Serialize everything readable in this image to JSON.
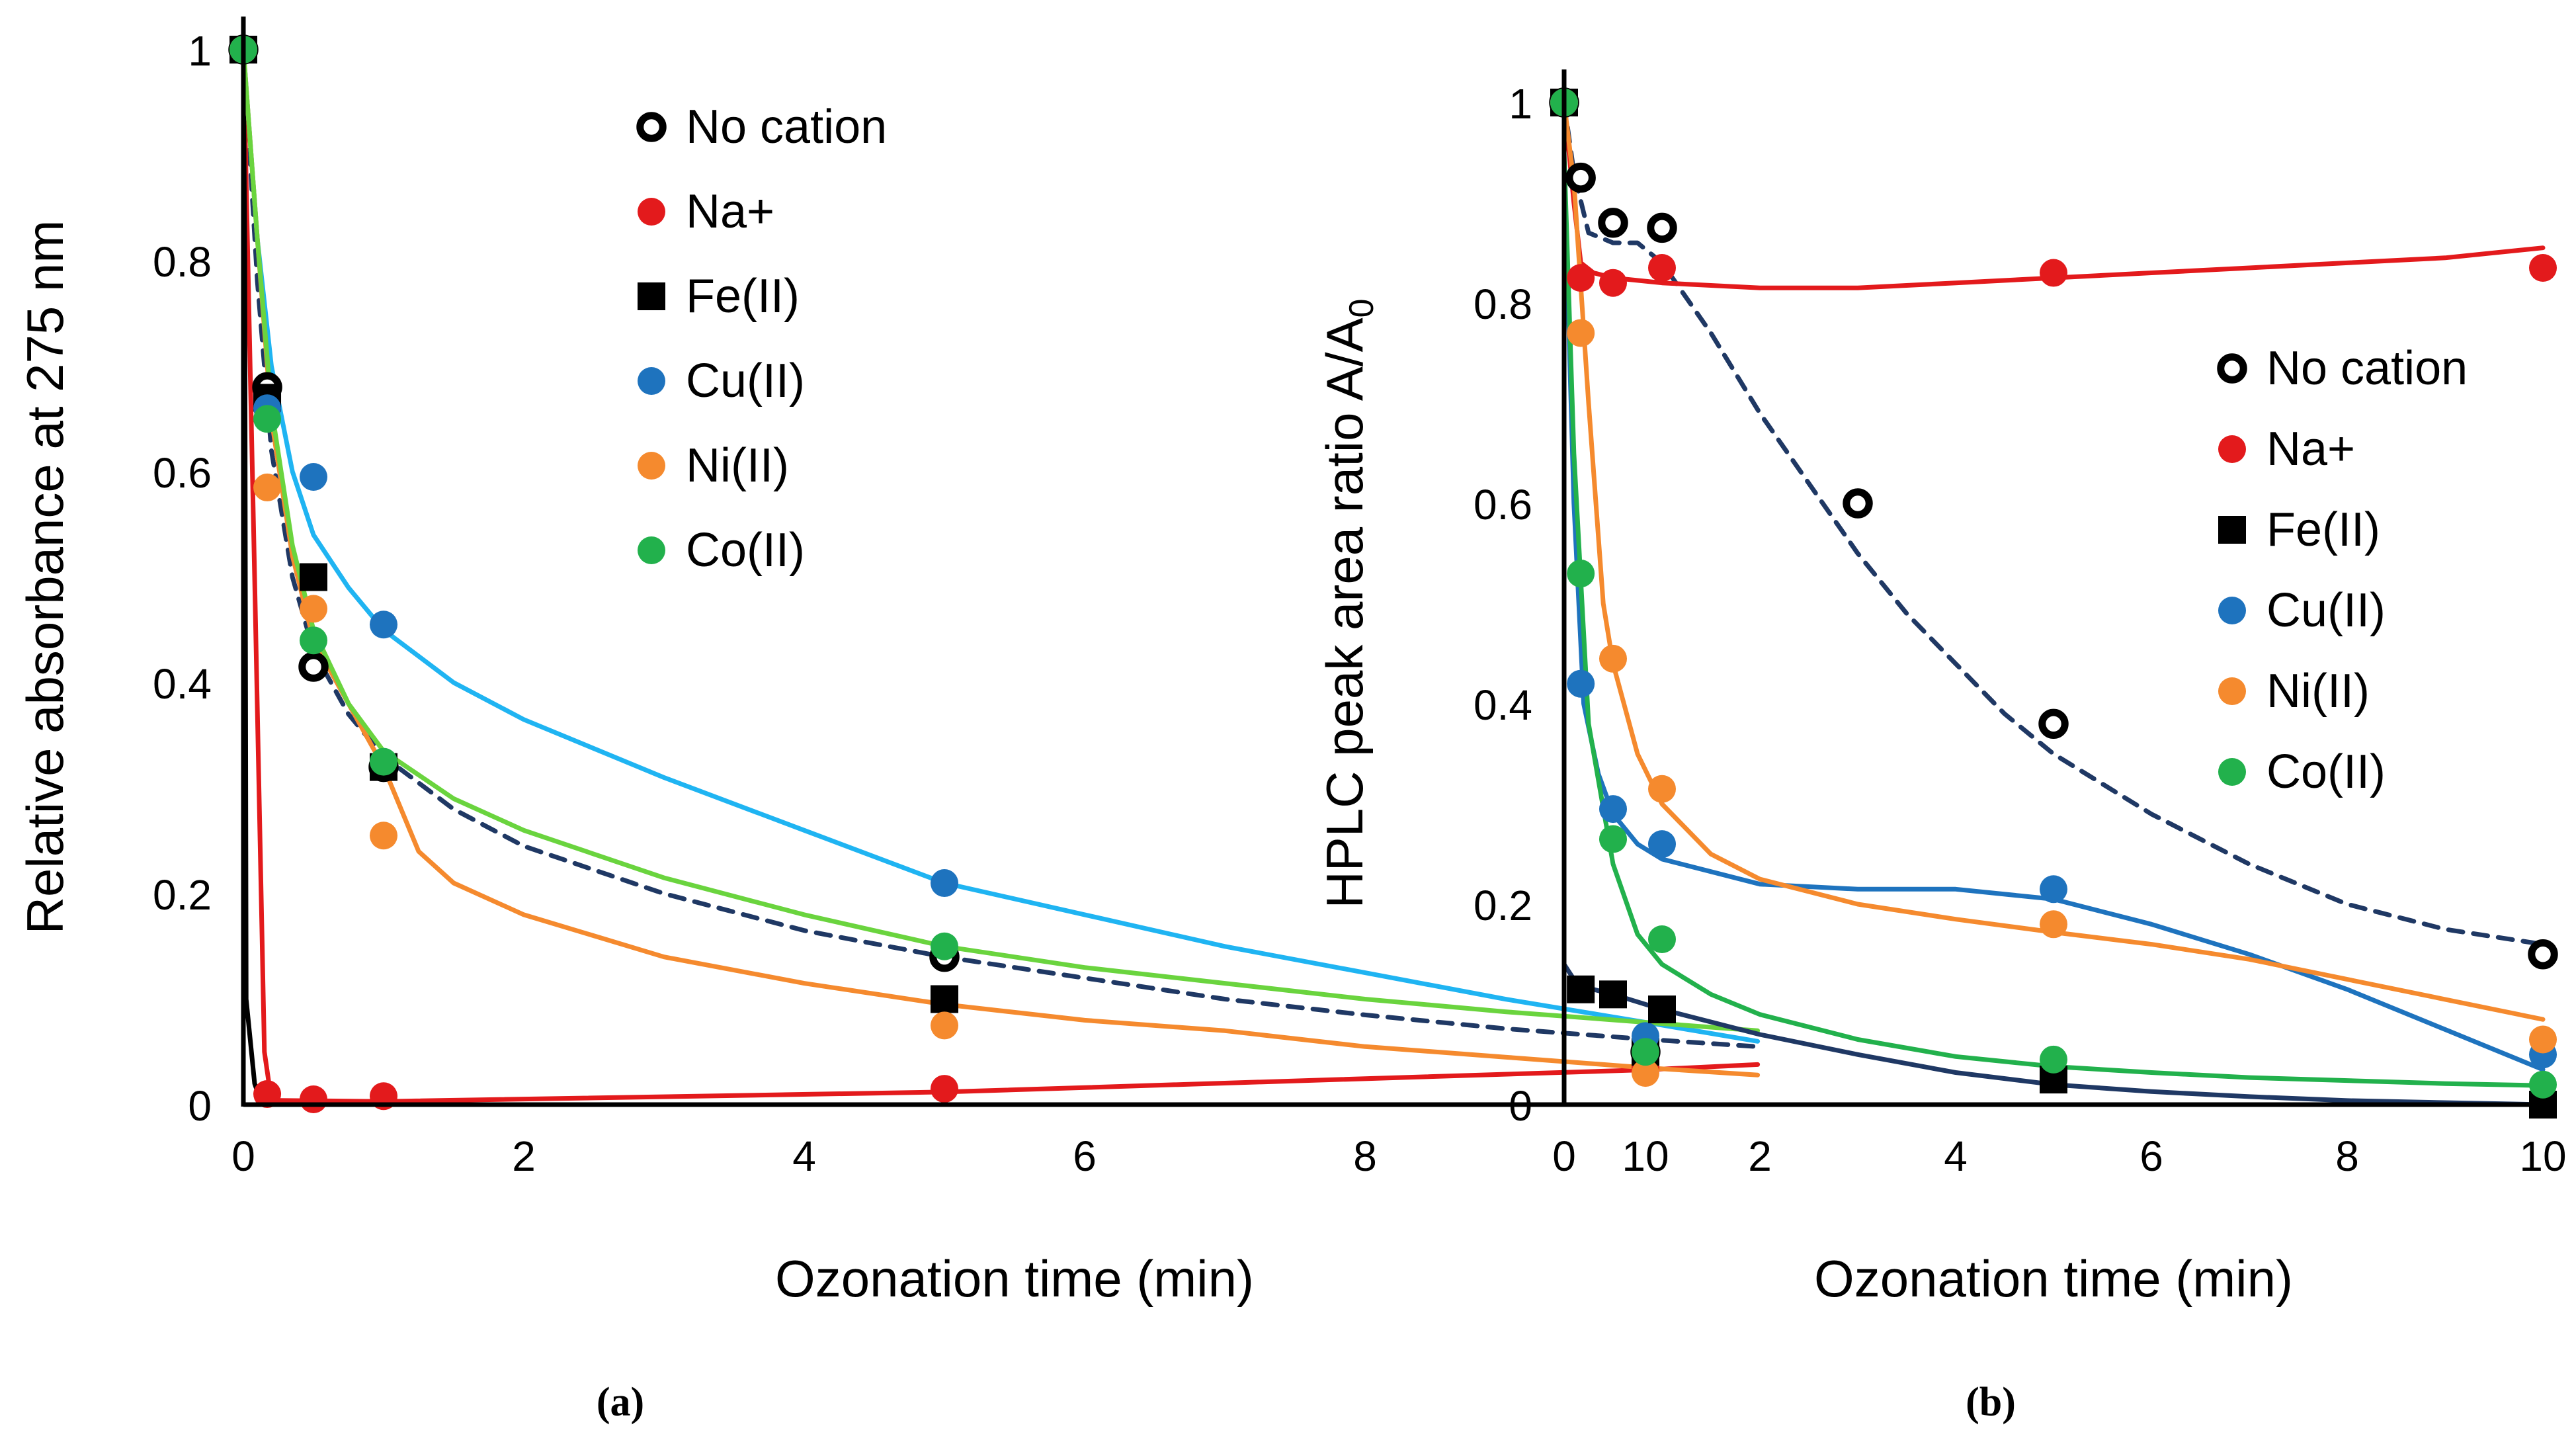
{
  "chart_data": [
    {
      "type": "scatter",
      "panel_label": "a",
      "panel_caption": "(a)",
      "title": "",
      "xlabel": "Ozonation time (min)",
      "ylabel": "Relative absorbance at 275 nm",
      "xlim": [
        0,
        11
      ],
      "ylim": [
        0,
        1
      ],
      "xticks": [
        0,
        2,
        4,
        6,
        8,
        10
      ],
      "yticks": [
        0,
        0.2,
        0.4,
        0.6,
        0.8,
        1
      ],
      "ytick_labels": [
        "0",
        "0.2",
        "0.4",
        "0.6",
        "0.8",
        "1"
      ],
      "legend": "top-right",
      "series": [
        {
          "name": "No cation",
          "color": "#000000",
          "marker": "open-circle",
          "x": [
            0,
            0.17,
            0.5,
            1,
            5,
            10
          ],
          "y": [
            1,
            0.68,
            0.415,
            0.32,
            0.14,
            0.05
          ],
          "fit": {
            "x": [
              0,
              0.1,
              0.2,
              0.35,
              0.5,
              0.75,
              1,
              1.5,
              2,
              3,
              4,
              5,
              6,
              7,
              8,
              9,
              10,
              10.8
            ],
            "y": [
              1,
              0.78,
              0.62,
              0.5,
              0.43,
              0.37,
              0.33,
              0.28,
              0.245,
              0.2,
              0.165,
              0.14,
              0.12,
              0.1,
              0.085,
              0.072,
              0.062,
              0.055
            ],
            "style": "dashed",
            "color": "#1f3864"
          }
        },
        {
          "name": "Na+",
          "color": "#e31a1c",
          "marker": "circle",
          "x": [
            0,
            0.17,
            0.5,
            1,
            5,
            10
          ],
          "y": [
            1,
            0.01,
            0.005,
            0.008,
            0.015,
            0.035
          ],
          "fit": {
            "x": [
              0,
              0.08,
              0.15,
              0.2,
              1,
              5,
              10,
              10.8
            ],
            "y": [
              1,
              0.5,
              0.05,
              0.004,
              0.003,
              0.012,
              0.033,
              0.038
            ],
            "style": "solid",
            "color": "#e31a1c"
          }
        },
        {
          "name": "Fe(II)",
          "color": "#000000",
          "marker": "square",
          "x": [
            0,
            0.17,
            0.5,
            1,
            5,
            10
          ],
          "y": [
            1,
            0.67,
            0.5,
            0.32,
            0.1,
            0.05
          ],
          "fit": {
            "x": [
              0,
              0.01,
              0.02,
              0.08,
              0.12,
              0.15
            ],
            "y": [
              1,
              0.8,
              0.1,
              0.02,
              0.005,
              0
            ],
            "style": "solid",
            "color": "#000000"
          }
        },
        {
          "name": "Cu(II)",
          "color": "#1e73be",
          "marker": "circle",
          "x": [
            0,
            0.17,
            0.5,
            1,
            5,
            10
          ],
          "y": [
            1,
            0.66,
            0.595,
            0.455,
            0.21,
            0.065
          ],
          "fit": {
            "x": [
              0,
              0.1,
              0.2,
              0.35,
              0.5,
              0.75,
              1,
              1.5,
              2,
              3,
              4,
              5,
              6,
              7,
              8,
              9,
              10,
              10.8
            ],
            "y": [
              1,
              0.82,
              0.7,
              0.6,
              0.54,
              0.49,
              0.45,
              0.4,
              0.365,
              0.31,
              0.26,
              0.21,
              0.18,
              0.15,
              0.125,
              0.1,
              0.078,
              0.06
            ],
            "style": "solid",
            "color": "#1fb4f2"
          }
        },
        {
          "name": "Ni(II)",
          "color": "#f58a2e",
          "marker": "circle",
          "x": [
            0,
            0.17,
            0.5,
            1,
            5,
            10
          ],
          "y": [
            1,
            0.585,
            0.47,
            0.255,
            0.075,
            0.03
          ],
          "fit": {
            "x": [
              0,
              0.1,
              0.2,
              0.35,
              0.5,
              0.75,
              1,
              1.25,
              1.5,
              2,
              3,
              4,
              5,
              6,
              7,
              8,
              9,
              10,
              10.8
            ],
            "y": [
              1,
              0.82,
              0.65,
              0.52,
              0.44,
              0.38,
              0.32,
              0.24,
              0.21,
              0.18,
              0.14,
              0.115,
              0.095,
              0.08,
              0.07,
              0.055,
              0.045,
              0.035,
              0.028
            ],
            "style": "solid",
            "color": "#f58a2e"
          }
        },
        {
          "name": "Co(II)",
          "color": "#22b14c",
          "marker": "circle",
          "x": [
            0,
            0.17,
            0.5,
            1,
            5,
            10
          ],
          "y": [
            1,
            0.65,
            0.44,
            0.325,
            0.15,
            0.05
          ],
          "fit": {
            "x": [
              0,
              0.1,
              0.2,
              0.35,
              0.5,
              0.75,
              1,
              1.5,
              2,
              3,
              4,
              5,
              6,
              7,
              8,
              9,
              10,
              10.8
            ],
            "y": [
              1,
              0.82,
              0.66,
              0.53,
              0.45,
              0.38,
              0.335,
              0.29,
              0.26,
              0.215,
              0.18,
              0.15,
              0.13,
              0.115,
              0.1,
              0.088,
              0.078,
              0.07
            ],
            "style": "solid",
            "color": "#6ad43e"
          }
        }
      ]
    },
    {
      "type": "scatter",
      "panel_label": "b",
      "panel_caption": "(b)",
      "title": "",
      "xlabel": "Ozonation time (min)",
      "ylabel": "HPLC peak area ratio A/A",
      "ylabel_subscript": "0",
      "xlim": [
        0,
        10
      ],
      "ylim": [
        0,
        1
      ],
      "xticks": [
        0,
        2,
        4,
        6,
        8,
        10
      ],
      "yticks": [
        0,
        0.2,
        0.4,
        0.6,
        0.8,
        1
      ],
      "ytick_labels": [
        "0",
        "0.2",
        "0.4",
        "0.6",
        "0.8",
        "1"
      ],
      "legend": "right",
      "series": [
        {
          "name": "No cation",
          "color": "#000000",
          "marker": "open-circle",
          "x": [
            0,
            0.17,
            0.5,
            1,
            3,
            5,
            10
          ],
          "y": [
            1,
            0.925,
            0.88,
            0.875,
            0.6,
            0.38,
            0.15
          ],
          "fit": {
            "x": [
              0,
              0.1,
              0.25,
              0.5,
              0.75,
              1,
              1.5,
              2,
              2.5,
              3,
              3.5,
              4,
              4.5,
              5,
              6,
              7,
              8,
              9,
              10
            ],
            "y": [
              1,
              0.93,
              0.87,
              0.86,
              0.86,
              0.84,
              0.77,
              0.69,
              0.62,
              0.55,
              0.49,
              0.44,
              0.39,
              0.35,
              0.29,
              0.24,
              0.2,
              0.175,
              0.16
            ],
            "style": "dashed",
            "color": "#1f3864"
          }
        },
        {
          "name": "Na+",
          "color": "#e31a1c",
          "marker": "circle",
          "x": [
            0,
            0.17,
            0.5,
            1,
            5,
            10
          ],
          "y": [
            1,
            0.825,
            0.82,
            0.835,
            0.83,
            0.835
          ],
          "fit": {
            "x": [
              0,
              0.1,
              0.17,
              0.3,
              0.5,
              1,
              2,
              3,
              4,
              5,
              6,
              7,
              8,
              9,
              10
            ],
            "y": [
              1,
              0.9,
              0.84,
              0.83,
              0.825,
              0.82,
              0.815,
              0.815,
              0.82,
              0.825,
              0.83,
              0.835,
              0.84,
              0.845,
              0.855
            ],
            "style": "solid",
            "color": "#e31a1c"
          }
        },
        {
          "name": "Fe(II)",
          "color": "#000000",
          "marker": "square",
          "x": [
            0,
            0.17,
            0.5,
            1,
            5,
            10
          ],
          "y": [
            1,
            0.115,
            0.11,
            0.095,
            0.025,
            0
          ],
          "fit": {
            "x": [
              0,
              0.1,
              0.3,
              0.5,
              1,
              2,
              3,
              4,
              5,
              6,
              7,
              8,
              9,
              10
            ],
            "y": [
              0.14,
              0.125,
              0.115,
              0.11,
              0.095,
              0.07,
              0.05,
              0.032,
              0.02,
              0.013,
              0.008,
              0.004,
              0.002,
              0
            ],
            "style": "solid",
            "color": "#1f3864"
          }
        },
        {
          "name": "Cu(II)",
          "color": "#1e73be",
          "marker": "circle",
          "x": [
            0,
            0.17,
            0.5,
            1,
            5,
            10
          ],
          "y": [
            1,
            0.42,
            0.295,
            0.26,
            0.215,
            0.05
          ],
          "fit": {
            "x": [
              0,
              0.1,
              0.2,
              0.35,
              0.5,
              0.75,
              1,
              2,
              3,
              4,
              5,
              6,
              7,
              8,
              9,
              10
            ],
            "y": [
              0.94,
              0.6,
              0.4,
              0.33,
              0.29,
              0.26,
              0.245,
              0.22,
              0.215,
              0.215,
              0.205,
              0.18,
              0.15,
              0.115,
              0.075,
              0.035
            ],
            "style": "solid",
            "color": "#1e73be"
          }
        },
        {
          "name": "Ni(II)",
          "color": "#f58a2e",
          "marker": "circle",
          "x": [
            0,
            0.17,
            0.5,
            1,
            5,
            10
          ],
          "y": [
            1,
            0.77,
            0.445,
            0.315,
            0.18,
            0.065
          ],
          "fit": {
            "x": [
              0,
              0.1,
              0.25,
              0.4,
              0.5,
              0.75,
              1,
              1.5,
              2,
              3,
              4,
              5,
              6,
              7,
              8,
              9,
              10
            ],
            "y": [
              1,
              0.92,
              0.7,
              0.5,
              0.44,
              0.35,
              0.3,
              0.25,
              0.225,
              0.2,
              0.185,
              0.172,
              0.16,
              0.145,
              0.125,
              0.105,
              0.085
            ],
            "style": "solid",
            "color": "#f58a2e"
          }
        },
        {
          "name": "Co(II)",
          "color": "#22b14c",
          "marker": "circle",
          "x": [
            0,
            0.17,
            0.5,
            1,
            5,
            10
          ],
          "y": [
            1,
            0.53,
            0.265,
            0.165,
            0.045,
            0.02
          ],
          "fit": {
            "x": [
              0,
              0.1,
              0.25,
              0.5,
              0.75,
              1,
              1.5,
              2,
              3,
              4,
              5,
              6,
              7,
              8,
              9,
              10
            ],
            "y": [
              0.95,
              0.65,
              0.38,
              0.24,
              0.17,
              0.14,
              0.11,
              0.09,
              0.065,
              0.048,
              0.038,
              0.032,
              0.027,
              0.024,
              0.021,
              0.019
            ],
            "style": "solid",
            "color": "#22b14c"
          }
        }
      ]
    }
  ]
}
